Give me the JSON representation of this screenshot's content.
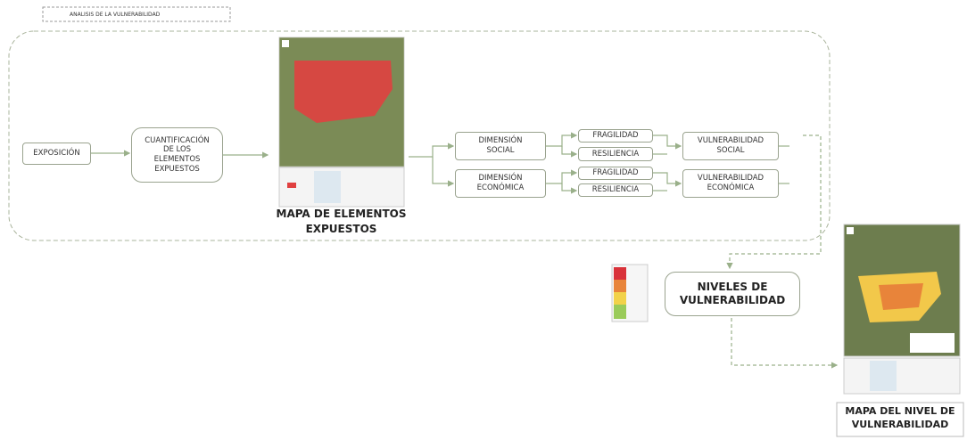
{
  "header": {
    "title": "ANALISIS DE LA VULNERABILIDAD"
  },
  "nodes": [
    {
      "label": "EXPOSICIÓN"
    },
    {
      "label": "CUANTIFICACIÓN DE LOS ELEMENTOS EXPUESTOS"
    },
    {
      "label": "MAPA DE ELEMENTOS EXPUESTOS"
    },
    {
      "label": "DIMENSIÓN SOCIAL"
    },
    {
      "label": "DIMENSIÓN ECONÓMICA"
    },
    {
      "label": "FRAGILIDAD"
    },
    {
      "label": "RESILIENCIA"
    },
    {
      "label": "FRAGILIDAD"
    },
    {
      "label": "RESILIENCIA"
    },
    {
      "label": "VULNERABILIDAD SOCIAL"
    },
    {
      "label": "VULNERABILIDAD ECONÓMICA"
    },
    {
      "label": "NIVELES DE VULNERABILIDAD"
    },
    {
      "label": "MAPA DEL NIVEL DE VULNERABILIDAD"
    }
  ]
}
